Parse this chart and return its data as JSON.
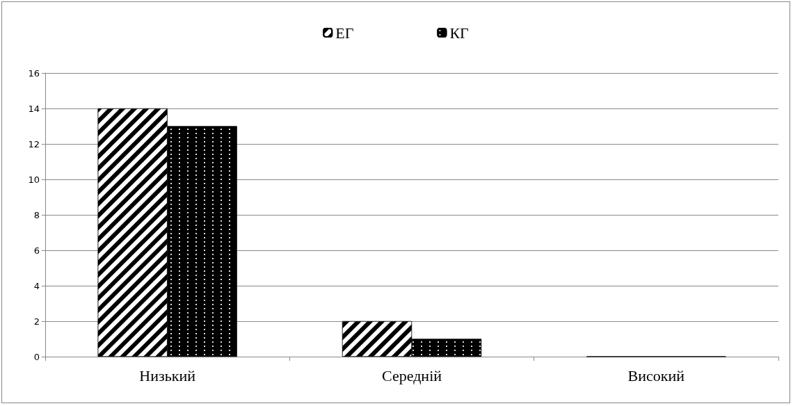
{
  "chart_data": {
    "type": "bar",
    "categories": [
      "Низький",
      "Середній",
      "Високий"
    ],
    "series": [
      {
        "name": "ЕГ",
        "color": "#ffffff",
        "values": [
          14,
          2,
          0
        ]
      },
      {
        "name": "КГ",
        "color": "#000000",
        "values": [
          13,
          1,
          0
        ]
      }
    ],
    "ylim": [
      0,
      16
    ],
    "yticks": [
      0,
      2,
      4,
      6,
      8,
      10,
      12,
      14,
      16
    ],
    "grid": "y",
    "legend": "top"
  }
}
